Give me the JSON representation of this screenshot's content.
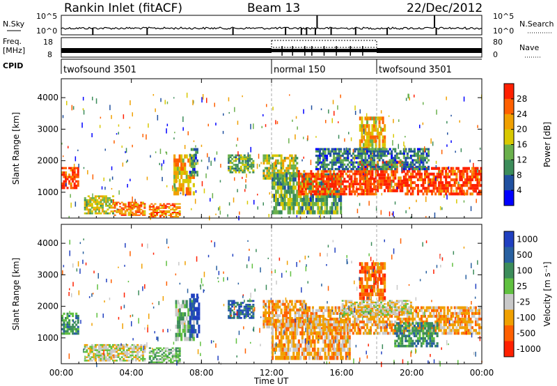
{
  "header": {
    "title": "Rankin Inlet (fitACF)",
    "beam": "Beam 13",
    "date": "22/Dec/2012"
  },
  "status_panels": {
    "nsky_label": "N.Sky",
    "nsky_ticks": [
      "10^5",
      "10^0"
    ],
    "nsearch_label": "N.Search",
    "freq_label_line1": "Freq.",
    "freq_label_line2": "[MHz]",
    "freq_ticks": [
      "18",
      "8"
    ],
    "nave_ticks": [
      "80",
      "0"
    ],
    "nave_label": "Nave",
    "cpid_label": "CPID",
    "cpid_segments": [
      {
        "label": "twofsound 3501",
        "start_h": 0,
        "end_h": 12
      },
      {
        "label": "normal 150",
        "start_h": 12,
        "end_h": 18
      },
      {
        "label": "twofsound 3501",
        "start_h": 18,
        "end_h": 24
      }
    ]
  },
  "chart_data": [
    {
      "type": "heatmap",
      "title": "Power",
      "xlabel": "Time UT",
      "ylabel": "Slant Range [km]",
      "xlim": [
        0,
        24
      ],
      "ylim": [
        180,
        4600
      ],
      "x_ticks": [
        "00:00",
        "04:00",
        "08:00",
        "12:00",
        "16:00",
        "20:00",
        "00:00"
      ],
      "y_ticks": [
        1000,
        2000,
        3000,
        4000
      ],
      "colorbar": {
        "label": "Power [dB]",
        "range": [
          0,
          32
        ],
        "ticks": [
          4,
          8,
          12,
          16,
          20,
          24,
          28
        ],
        "colors": [
          "#0000ff",
          "#2050a0",
          "#3c8c5a",
          "#6ab04c",
          "#d8c800",
          "#f0a000",
          "#ff6000",
          "#ff2000"
        ]
      },
      "regions": [
        {
          "t0": 0.0,
          "t1": 1.0,
          "r0": 1100,
          "r1": 1800,
          "level": 28
        },
        {
          "t0": 1.3,
          "t1": 3.0,
          "r0": 300,
          "r1": 900,
          "level": 14
        },
        {
          "t0": 3.0,
          "t1": 4.8,
          "r0": 250,
          "r1": 700,
          "level": 22
        },
        {
          "t0": 5.0,
          "t1": 6.8,
          "r0": 200,
          "r1": 650,
          "level": 24
        },
        {
          "t0": 6.4,
          "t1": 7.6,
          "r0": 900,
          "r1": 2200,
          "level": 18
        },
        {
          "t0": 7.3,
          "t1": 7.8,
          "r0": 1500,
          "r1": 2400,
          "level": 6
        },
        {
          "t0": 9.5,
          "t1": 11.0,
          "r0": 1600,
          "r1": 2200,
          "level": 10
        },
        {
          "t0": 11.5,
          "t1": 13.5,
          "r0": 1400,
          "r1": 2200,
          "level": 16
        },
        {
          "t0": 12.0,
          "t1": 16.0,
          "r0": 300,
          "r1": 1600,
          "level": 12
        },
        {
          "t0": 13.5,
          "t1": 18.0,
          "r0": 900,
          "r1": 1700,
          "level": 28
        },
        {
          "t0": 17.0,
          "t1": 19.5,
          "r0": 1000,
          "r1": 2000,
          "level": 26
        },
        {
          "t0": 19.5,
          "t1": 24.0,
          "r0": 900,
          "r1": 1800,
          "level": 28
        },
        {
          "t0": 17.0,
          "t1": 18.5,
          "r0": 2200,
          "r1": 3400,
          "level": 18
        },
        {
          "t0": 14.5,
          "t1": 21.0,
          "r0": 1700,
          "r1": 2400,
          "level": 8
        }
      ]
    },
    {
      "type": "heatmap",
      "title": "Velocity",
      "xlabel": "Time UT",
      "ylabel": "Slant Range [km]",
      "xlim": [
        0,
        24
      ],
      "ylim": [
        180,
        4600
      ],
      "x_ticks": [
        "00:00",
        "04:00",
        "08:00",
        "12:00",
        "16:00",
        "20:00",
        "00:00"
      ],
      "y_ticks": [
        1000,
        2000,
        3000,
        4000
      ],
      "colorbar": {
        "label": "Velocity [m s⁻¹]",
        "ticks": [
          "1000",
          "500",
          "100",
          "25",
          "-25",
          "-100",
          "-500",
          "-1000"
        ],
        "colors": [
          "#2040c0",
          "#2860a0",
          "#3c8c5a",
          "#60c040",
          "#c8c8c8",
          "#f0a000",
          "#ff6000",
          "#ff2000"
        ]
      },
      "regions": [
        {
          "t0": 0.0,
          "t1": 1.0,
          "r0": 1100,
          "r1": 1800,
          "level": 2
        },
        {
          "t0": 1.3,
          "t1": 4.8,
          "r0": 250,
          "r1": 800,
          "level": 4
        },
        {
          "t0": 5.0,
          "t1": 6.8,
          "r0": 200,
          "r1": 700,
          "level": 3
        },
        {
          "t0": 6.5,
          "t1": 7.6,
          "r0": 900,
          "r1": 2200,
          "level": 3
        },
        {
          "t0": 7.3,
          "t1": 7.9,
          "r0": 1000,
          "r1": 2400,
          "level": 0
        },
        {
          "t0": 9.5,
          "t1": 11.0,
          "r0": 1600,
          "r1": 2200,
          "level": 1
        },
        {
          "t0": 11.5,
          "t1": 14.0,
          "r0": 1300,
          "r1": 2200,
          "level": 5
        },
        {
          "t0": 12.0,
          "t1": 16.5,
          "r0": 300,
          "r1": 1600,
          "level": 5
        },
        {
          "t0": 14.0,
          "t1": 24.0,
          "r0": 1100,
          "r1": 2000,
          "level": 5
        },
        {
          "t0": 16.0,
          "t1": 20.0,
          "r0": 1700,
          "r1": 2200,
          "level": 4
        },
        {
          "t0": 19.0,
          "t1": 21.5,
          "r0": 700,
          "r1": 1500,
          "level": 2
        },
        {
          "t0": 17.0,
          "t1": 18.5,
          "r0": 2200,
          "r1": 3400,
          "level": 6
        }
      ]
    }
  ]
}
